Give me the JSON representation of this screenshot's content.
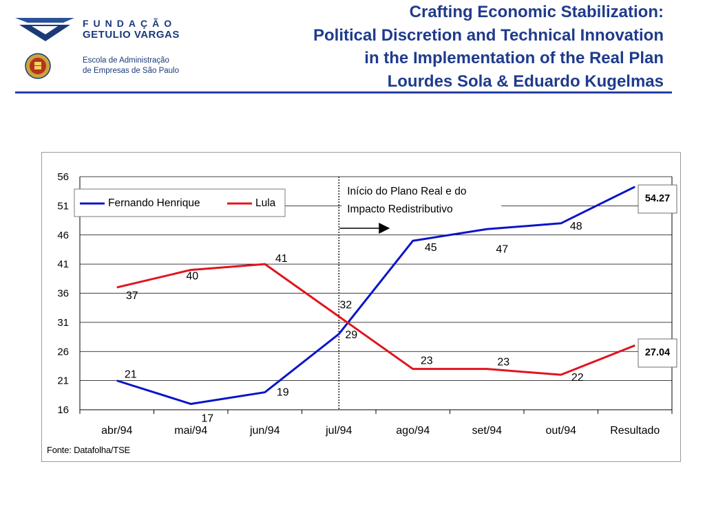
{
  "header": {
    "fgv_line1": "FUNDAÇÃO",
    "fgv_line2": "GETULIO VARGAS",
    "school_line1": "Escola de Administração",
    "school_line2": "de Empresas de São Paulo",
    "title_lines": [
      "Crafting Economic Stabilization:",
      "Political Discretion and Technical Innovation",
      "in the Implementation of the Real Plan",
      "Lourdes Sola & Eduardo Kugelmas"
    ]
  },
  "colors": {
    "title": "#1f3b8c",
    "rule": "#2a3ea2",
    "fernando": "#0a14c8",
    "lula": "#e0141e"
  },
  "chart_data": {
    "type": "line",
    "categories": [
      "abr/94",
      "mai/94",
      "jun/94",
      "jul/94",
      "ago/94",
      "set/94",
      "out/94",
      "Resultado"
    ],
    "series": [
      {
        "name": "Fernando Henrique",
        "color": "#0a14c8",
        "values": [
          21,
          17,
          19,
          29,
          45,
          47,
          48,
          54.27
        ],
        "labels": [
          "21",
          "17",
          "19",
          "29",
          "45",
          "47",
          "48",
          "54.27"
        ]
      },
      {
        "name": "Lula",
        "color": "#e0141e",
        "values": [
          37,
          40,
          41,
          32,
          23,
          23,
          22,
          27.04
        ],
        "labels": [
          "37",
          "40",
          "41",
          "32",
          "23",
          "23",
          "22",
          "27.04"
        ]
      }
    ],
    "yticks": [
      56,
      51,
      46,
      41,
      36,
      31,
      26,
      21,
      16
    ],
    "ylim": [
      16,
      56
    ],
    "grid": true,
    "legend_position": "top-left",
    "annotation": {
      "line1": "Início do Plano Real e do",
      "line2": "Impacto Redistributivo",
      "at_category": "jul/94"
    },
    "source": "Fonte: Datafolha/TSE"
  }
}
